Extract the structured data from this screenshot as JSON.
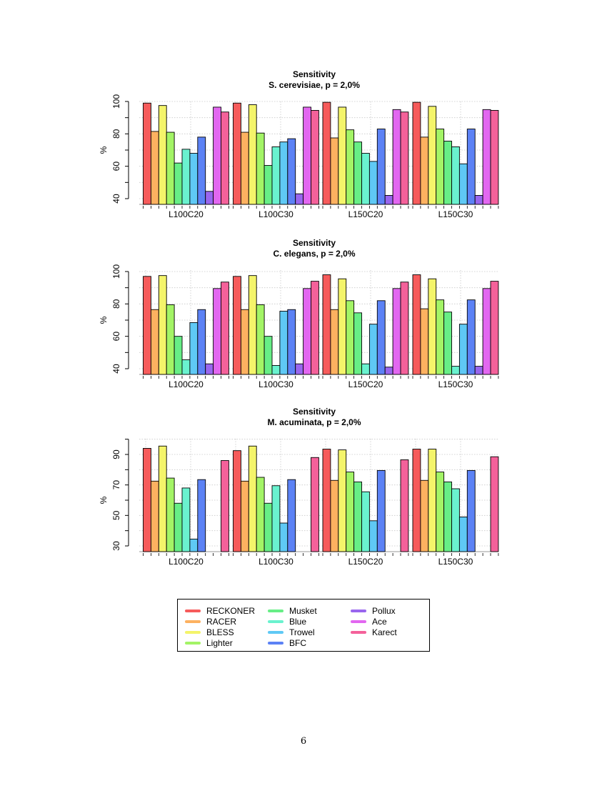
{
  "page_number": "6",
  "series_names": [
    "RECKONER",
    "RACER",
    "BLESS",
    "Lighter",
    "Musket",
    "Blue",
    "Trowel",
    "BFC",
    "Pollux",
    "Ace",
    "Karect"
  ],
  "series_colors": [
    "#F65B5B",
    "#FDB160",
    "#F4F46A",
    "#A3F466",
    "#67EE86",
    "#6AF2CF",
    "#5FC9F5",
    "#5C82F5",
    "#9966EE",
    "#E267F0",
    "#F4619A"
  ],
  "chart_data": [
    {
      "type": "bar",
      "title": "Sensitivity",
      "subtitle": "S. cerevisiae, p = 2,0%",
      "ylabel": "%",
      "xlabel": "",
      "categories": [
        "L100C20",
        "L100C30",
        "L150C20",
        "L150C30"
      ],
      "ylim": [
        40,
        100
      ],
      "yticks": [
        40,
        60,
        80,
        100
      ],
      "grid": true,
      "series": [
        {
          "name": "RECKONER",
          "values": [
            99,
            99,
            99.5,
            99.5
          ]
        },
        {
          "name": "RACER",
          "values": [
            81.5,
            81,
            77.5,
            78
          ]
        },
        {
          "name": "BLESS",
          "values": [
            97.5,
            98,
            96.5,
            97
          ]
        },
        {
          "name": "Lighter",
          "values": [
            81,
            80.5,
            82.5,
            83
          ]
        },
        {
          "name": "Musket",
          "values": [
            62,
            60.5,
            75,
            75.5
          ]
        },
        {
          "name": "Blue",
          "values": [
            70.5,
            72,
            68,
            72
          ]
        },
        {
          "name": "Trowel",
          "values": [
            68,
            75,
            63,
            61.5
          ]
        },
        {
          "name": "BFC",
          "values": [
            78,
            77,
            83,
            83
          ]
        },
        {
          "name": "Pollux",
          "values": [
            44.5,
            43,
            42,
            42
          ]
        },
        {
          "name": "Ace",
          "values": [
            96.5,
            96.5,
            95,
            95
          ]
        },
        {
          "name": "Karect",
          "values": [
            93.5,
            94.5,
            93.5,
            94.5
          ]
        }
      ]
    },
    {
      "type": "bar",
      "title": "Sensitivity",
      "subtitle": "C. elegans, p = 2,0%",
      "ylabel": "%",
      "xlabel": "",
      "categories": [
        "L100C20",
        "L100C30",
        "L150C20",
        "L150C30"
      ],
      "ylim": [
        40,
        100
      ],
      "yticks": [
        40,
        60,
        80,
        100
      ],
      "grid": true,
      "series": [
        {
          "name": "RECKONER",
          "values": [
            97,
            97,
            98,
            98
          ]
        },
        {
          "name": "RACER",
          "values": [
            76.5,
            76.5,
            76.5,
            77
          ]
        },
        {
          "name": "BLESS",
          "values": [
            97.5,
            97.5,
            95.5,
            95.5
          ]
        },
        {
          "name": "Lighter",
          "values": [
            79.5,
            79.5,
            82,
            82.5
          ]
        },
        {
          "name": "Musket",
          "values": [
            60,
            60,
            74.5,
            75
          ]
        },
        {
          "name": "Blue",
          "values": [
            45.5,
            42,
            43,
            41.5
          ]
        },
        {
          "name": "Trowel",
          "values": [
            68.5,
            75.5,
            67.5,
            67.5
          ]
        },
        {
          "name": "BFC",
          "values": [
            76.5,
            76.5,
            82,
            82.5
          ]
        },
        {
          "name": "Pollux",
          "values": [
            43,
            43,
            41,
            41.5
          ]
        },
        {
          "name": "Ace",
          "values": [
            89.5,
            89.5,
            89.5,
            89.5
          ]
        },
        {
          "name": "Karect",
          "values": [
            93.5,
            94,
            93.5,
            94
          ]
        }
      ]
    },
    {
      "type": "bar",
      "title": "Sensitivity",
      "subtitle": "M. acuminata, p = 2,0%",
      "ylabel": "%",
      "xlabel": "",
      "categories": [
        "L100C20",
        "L100C30",
        "L150C20",
        "L150C30"
      ],
      "ylim": [
        30,
        100
      ],
      "yticks": [
        30,
        50,
        70,
        90
      ],
      "grid": true,
      "series": [
        {
          "name": "RECKONER",
          "values": [
            94,
            92.5,
            93.5,
            93.5
          ]
        },
        {
          "name": "RACER",
          "values": [
            72.5,
            72.5,
            73,
            73
          ]
        },
        {
          "name": "BLESS",
          "values": [
            95.5,
            95.5,
            93,
            93.5
          ]
        },
        {
          "name": "Lighter",
          "values": [
            74.5,
            75,
            78.5,
            78.5
          ]
        },
        {
          "name": "Musket",
          "values": [
            58,
            58,
            72,
            72
          ]
        },
        {
          "name": "Blue",
          "values": [
            68,
            69.5,
            65.5,
            67.5
          ]
        },
        {
          "name": "Trowel",
          "values": [
            34.5,
            45,
            46.5,
            49
          ]
        },
        {
          "name": "BFC",
          "values": [
            73.5,
            73.5,
            79.5,
            79.5
          ]
        },
        {
          "name": "Pollux",
          "values": [
            null,
            null,
            null,
            null
          ]
        },
        {
          "name": "Ace",
          "values": [
            null,
            null,
            null,
            null
          ]
        },
        {
          "name": "Karect",
          "values": [
            86,
            88,
            86.5,
            88.5
          ]
        }
      ]
    }
  ]
}
